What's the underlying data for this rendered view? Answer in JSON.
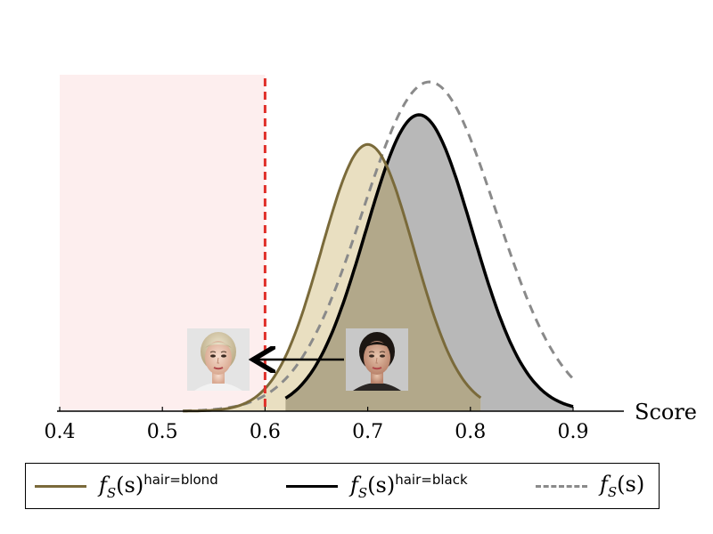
{
  "chart_data": {
    "type": "area",
    "xlabel": "Score",
    "xlim": [
      0.35,
      0.95
    ],
    "ylim": [
      0,
      1.05
    ],
    "xticks": [
      0.4,
      0.5,
      0.6,
      0.7,
      0.8,
      0.9
    ],
    "xtick_labels": [
      "0.4",
      "0.5",
      "0.6",
      "0.7",
      "0.8",
      "0.9"
    ],
    "threshold": 0.6,
    "shaded_region": [
      0.4,
      0.6
    ],
    "annotation_arrow": {
      "from_x": 0.7,
      "to_x": 0.6
    },
    "series": [
      {
        "name": "f_S(s)^hair=blond",
        "mean": 0.7,
        "sd": 0.045,
        "peak": 0.81,
        "range": [
          0.52,
          0.81
        ],
        "color": "#7a6a3a",
        "fill": "#e9dfc1",
        "style": "solid"
      },
      {
        "name": "f_S(s)^hair=black",
        "mean": 0.75,
        "sd": 0.052,
        "peak": 0.9,
        "range": [
          0.62,
          0.9
        ],
        "color": "#000000",
        "fill": "#b8b8b8",
        "style": "solid"
      },
      {
        "name": "f_S(s)",
        "mean": 0.76,
        "sd": 0.065,
        "peak": 1.0,
        "range": [
          0.52,
          0.9
        ],
        "color": "#8a8a8a",
        "fill": "none",
        "style": "dashed"
      }
    ],
    "overlap_fill": "#b2a88a",
    "shade_color": "#fdeeee",
    "threshold_color": "#e0302a"
  },
  "legend": {
    "blond": {
      "base": "f",
      "sub": "S",
      "arg": "(s)",
      "sup": "hair=blond"
    },
    "black": {
      "base": "f",
      "sub": "S",
      "arg": "(s)",
      "sup": "hair=black"
    },
    "all": {
      "base": "f",
      "sub": "S",
      "arg": "(s)"
    }
  },
  "images": {
    "blond_face": "blond-face-photo",
    "black_face": "black-hair-face-photo"
  }
}
